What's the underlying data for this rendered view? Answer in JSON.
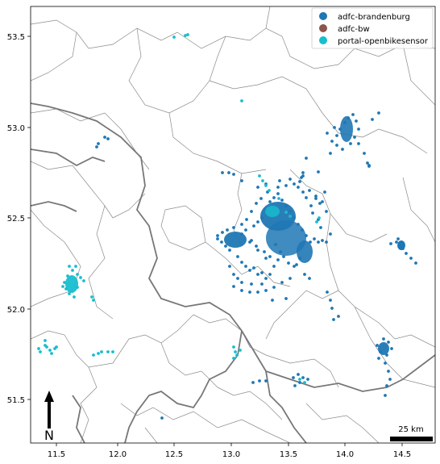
{
  "map": {
    "x_ticks": [
      "11.5",
      "12.0",
      "12.5",
      "13.0",
      "13.5",
      "14.0",
      "14.5"
    ],
    "y_ticks": [
      "53.5",
      "53.0",
      "52.5",
      "52.0",
      "51.5"
    ],
    "scale_bar_label": "25 km",
    "north_label": "N"
  },
  "legend": {
    "placement": "top-right",
    "items": [
      {
        "label": "adfc-brandenburg",
        "color": "#1f77b4"
      },
      {
        "label": "adfc-bw",
        "color": "#8c564b"
      },
      {
        "label": "portal-openbikesensor",
        "color": "#17becf"
      }
    ]
  },
  "colors": {
    "state_border": "#777777",
    "district_border": "#8a8a8a"
  },
  "chart_data": {
    "type": "scatter",
    "xlim": [
      11.25,
      14.8
    ],
    "ylim": [
      51.25,
      53.67
    ],
    "series": [
      {
        "name": "adfc-brandenburg",
        "color": "#1f77b4"
      },
      {
        "name": "adfc-bw",
        "color": "#8c564b"
      },
      {
        "name": "portal-openbikesensor",
        "color": "#17becf"
      }
    ]
  }
}
